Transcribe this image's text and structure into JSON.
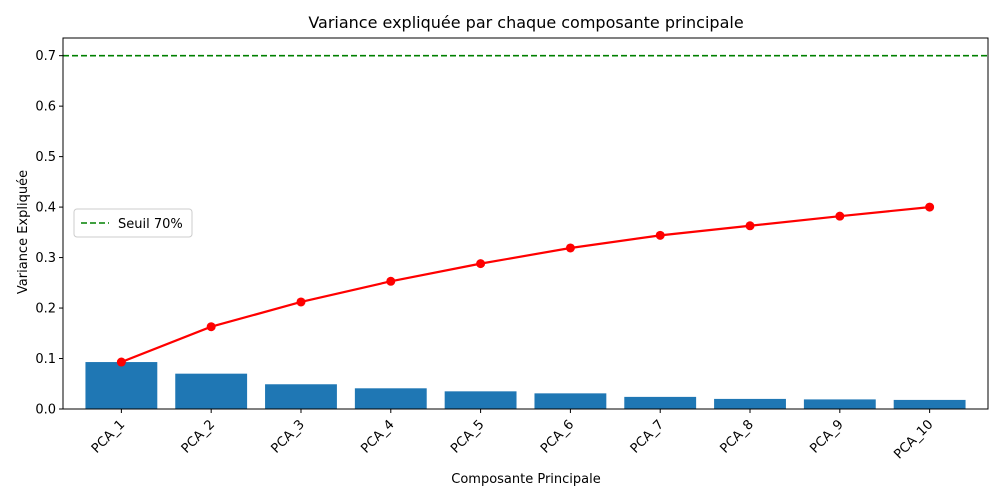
{
  "chart_data": {
    "type": "bar",
    "title": "Variance expliquée par chaque composante principale",
    "xlabel": "Composante Principale",
    "ylabel": "Variance Expliquée",
    "ylim": [
      0,
      0.735
    ],
    "yticks": [
      "0.0",
      "0.1",
      "0.2",
      "0.3",
      "0.4",
      "0.5",
      "0.6",
      "0.7"
    ],
    "categories": [
      "PCA_1",
      "PCA_2",
      "PCA_3",
      "PCA_4",
      "PCA_5",
      "PCA_6",
      "PCA_7",
      "PCA_8",
      "PCA_9",
      "PCA_10"
    ],
    "bars": {
      "values": [
        0.093,
        0.07,
        0.049,
        0.041,
        0.035,
        0.031,
        0.024,
        0.02,
        0.019,
        0.018
      ],
      "color": "#1f77b4"
    },
    "cumulative": {
      "values": [
        0.093,
        0.163,
        0.212,
        0.253,
        0.288,
        0.319,
        0.344,
        0.363,
        0.382,
        0.4
      ],
      "color": "#ff0000"
    },
    "threshold": {
      "value": 0.7,
      "label": "Seuil 70%",
      "color": "#008000"
    },
    "legend_position": "center-left",
    "grid": false
  }
}
